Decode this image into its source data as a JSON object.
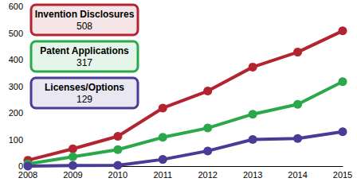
{
  "chart_data": {
    "type": "line",
    "categories": [
      "2008",
      "2009",
      "2010",
      "2011",
      "2012",
      "2013",
      "2014",
      "2015"
    ],
    "series": [
      {
        "name": "Invention Disclosures",
        "color": "#b32431",
        "values": [
          22,
          65,
          112,
          218,
          282,
          372,
          428,
          508
        ]
      },
      {
        "name": "Patent Applications",
        "color": "#2aa84a",
        "values": [
          8,
          35,
          62,
          108,
          143,
          195,
          232,
          317
        ]
      },
      {
        "name": "Licenses/Options",
        "color": "#4a3b96",
        "values": [
          0,
          2,
          3,
          25,
          57,
          100,
          104,
          129
        ]
      }
    ],
    "ylim": [
      0,
      600
    ],
    "yticks": [
      0,
      100,
      200,
      300,
      400,
      500,
      600
    ],
    "grid": false,
    "legend": "upper left",
    "marker": "circle"
  }
}
